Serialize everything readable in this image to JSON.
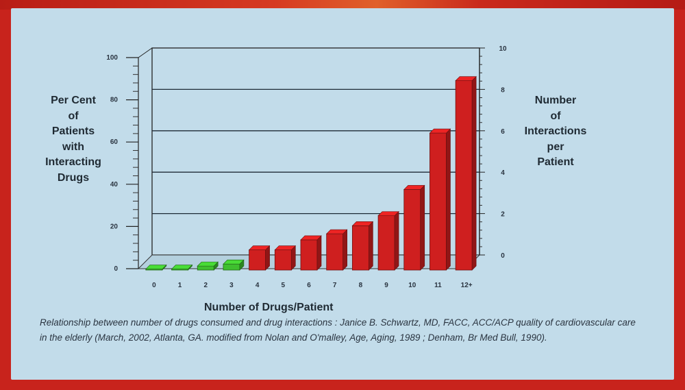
{
  "chart_data": {
    "type": "bar",
    "categories": [
      "0",
      "1",
      "2",
      "3",
      "4",
      "5",
      "6",
      "7",
      "8",
      "9",
      "10",
      "11",
      "12+"
    ],
    "values": [
      0.5,
      0.5,
      2,
      3,
      10,
      10,
      15,
      18,
      22,
      27,
      40,
      68,
      94
    ],
    "bar_colors": [
      "#3fbf2f",
      "#3fbf2f",
      "#3fbf2f",
      "#3fbf2f",
      "#cf1f1f",
      "#cf1f1f",
      "#cf1f1f",
      "#cf1f1f",
      "#cf1f1f",
      "#cf1f1f",
      "#cf1f1f",
      "#cf1f1f",
      "#cf1f1f"
    ],
    "ylabel": "Per Cent of Patients with Interacting Drugs",
    "ylabel_lines": [
      "Per Cent",
      "of",
      "Patients",
      "with",
      "Interacting",
      "Drugs"
    ],
    "y2label": "Number of Interactions per Patient",
    "y2label_lines": [
      "Number",
      "of",
      "Interactions",
      "per",
      "Patient"
    ],
    "xlabel": "Number of Drugs/Patient",
    "ylim": [
      0,
      100
    ],
    "y2lim": [
      0,
      10
    ],
    "yticks": [
      "0",
      "20",
      "40",
      "60",
      "80",
      "100"
    ],
    "y2ticks": [
      "0",
      "2",
      "4",
      "6",
      "8",
      "10"
    ],
    "grid": true
  },
  "caption": "Relationship between number of drugs consumed and drug interactions : Janice B. Schwartz, MD, FACC, ACC/ACP quality of cardiovascular care in the elderly (March, 2002, Atlanta, GA.  modified from Nolan and O'malley, Age, Aging, 1989 ; Denham, Br Med Bull, 1990).",
  "colors": {
    "slide_bg": "#c2dcea",
    "frame": "#c8231c",
    "bar_red": "#cf1f1f",
    "bar_green": "#3fbf2f"
  }
}
